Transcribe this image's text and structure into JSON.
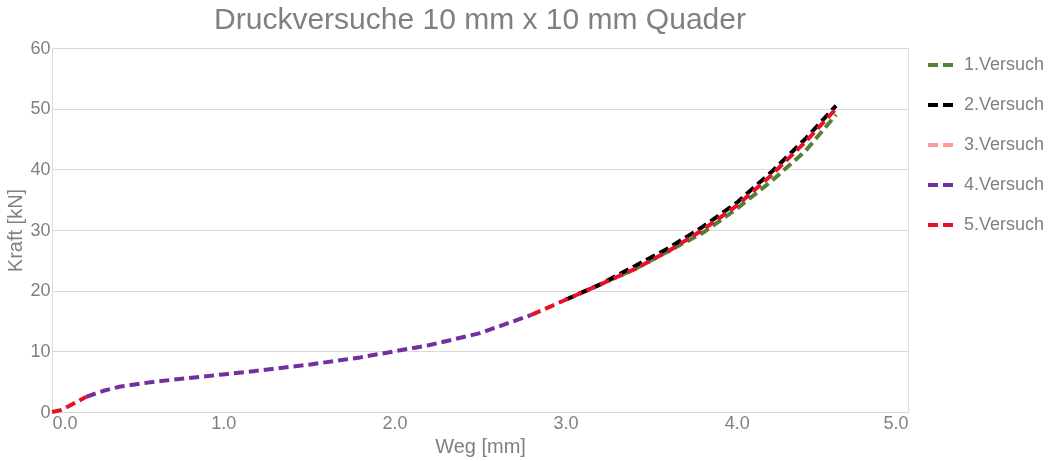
{
  "chart_data": {
    "type": "line",
    "title": "Druckversuche 10 mm x 10 mm Quader",
    "xlabel": "Weg [mm]",
    "ylabel": "Kraft [kN]",
    "x": [
      0,
      0.05,
      0.1,
      0.2,
      0.3,
      0.4,
      0.6,
      0.8,
      1.0,
      1.2,
      1.5,
      1.8,
      2.0,
      2.2,
      2.5,
      2.8,
      3.0,
      3.2,
      3.4,
      3.6,
      3.8,
      4.0,
      4.2,
      4.4,
      4.58
    ],
    "series": [
      {
        "name": "1.Versuch",
        "color": "#548235",
        "line_style": "dashed",
        "values": [
          null,
          null,
          null,
          null,
          null,
          null,
          null,
          null,
          null,
          null,
          null,
          null,
          null,
          null,
          null,
          null,
          18.5,
          21,
          23.5,
          26.5,
          29.5,
          33.5,
          38,
          43,
          49
        ]
      },
      {
        "name": "2.Versuch",
        "color": "#000000",
        "line_style": "dashed",
        "values": [
          null,
          null,
          null,
          null,
          null,
          null,
          null,
          null,
          null,
          null,
          null,
          null,
          null,
          null,
          null,
          null,
          18.5,
          21,
          24,
          27,
          30.5,
          34.5,
          39.5,
          45,
          50.5
        ]
      },
      {
        "name": "3.Versuch",
        "color": "#ff9999",
        "line_style": "dashed",
        "values": [
          null,
          null,
          null,
          null,
          null,
          null,
          null,
          null,
          null,
          null,
          null,
          null,
          null,
          null,
          null,
          null,
          null,
          null,
          null,
          null,
          null,
          null,
          null,
          null,
          null
        ]
      },
      {
        "name": "4.Versuch",
        "color": "#7030a0",
        "line_style": "dashed",
        "values": [
          null,
          null,
          null,
          2.5,
          3.5,
          4.2,
          5,
          5.6,
          6.2,
          6.8,
          7.8,
          9,
          10,
          11,
          13,
          16,
          null,
          null,
          null,
          null,
          null,
          null,
          null,
          null,
          null
        ]
      },
      {
        "name": "5.Versuch",
        "color": "#e8102a",
        "line_style": "dashed",
        "values": [
          0,
          0.3,
          1,
          2.5,
          null,
          null,
          null,
          null,
          null,
          null,
          null,
          null,
          null,
          null,
          null,
          16,
          18.5,
          21,
          23.5,
          26.5,
          30,
          34,
          39,
          44.5,
          50
        ]
      }
    ],
    "xlim": [
      0,
      5
    ],
    "xticks": [
      {
        "value": 0,
        "label": "0.0"
      },
      {
        "value": 1,
        "label": "1.0"
      },
      {
        "value": 2,
        "label": "2.0"
      },
      {
        "value": 3,
        "label": "3.0"
      },
      {
        "value": 4,
        "label": "4.0"
      },
      {
        "value": 5,
        "label": "5.0"
      }
    ],
    "ylim": [
      0,
      60
    ],
    "yticks": [
      0,
      10,
      20,
      30,
      40,
      50,
      60
    ],
    "grid": "y",
    "legend": "right"
  }
}
